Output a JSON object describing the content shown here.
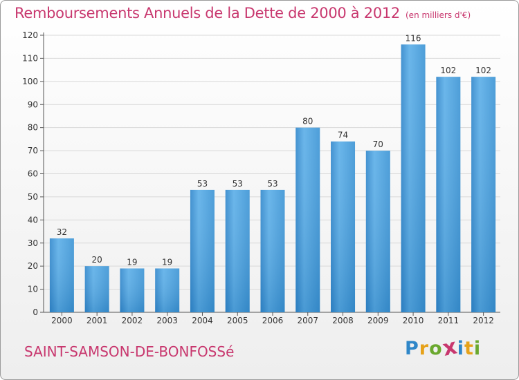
{
  "title": "Remboursements Annuels de la Dette de 2000 à 2012",
  "unit": "(en milliers d'€)",
  "commune": "SAINT-SAMSON-DE-BONFOSSé",
  "logo": {
    "text": "Proxiti",
    "letters": [
      {
        "ch": "P",
        "color": "#2e86c8"
      },
      {
        "ch": "r",
        "color": "#e6a21a"
      },
      {
        "ch": "o",
        "color": "#6aa82e"
      },
      {
        "ch": "x",
        "color": "#c8376e"
      },
      {
        "ch": "i",
        "color": "#2e86c8"
      },
      {
        "ch": "t",
        "color": "#e6a21a"
      },
      {
        "ch": "i",
        "color": "#6aa82e"
      }
    ]
  },
  "colors": {
    "bar": "#3f98d8",
    "bar_light": "#5aaee8",
    "bar_dark": "#2e7fc0",
    "title": "#c8376e",
    "grid": "#d8d8d8"
  },
  "chart_data": {
    "type": "bar",
    "categories": [
      "2000",
      "2001",
      "2002",
      "2003",
      "2004",
      "2005",
      "2006",
      "2007",
      "2008",
      "2009",
      "2010",
      "2011",
      "2012"
    ],
    "values": [
      32,
      20,
      19,
      19,
      53,
      53,
      53,
      80,
      74,
      70,
      116,
      102,
      102
    ],
    "ylim": [
      0,
      120
    ],
    "yticks": [
      0,
      10,
      20,
      30,
      40,
      50,
      60,
      70,
      80,
      90,
      100,
      110,
      120
    ],
    "grid": true,
    "legend": "none"
  }
}
